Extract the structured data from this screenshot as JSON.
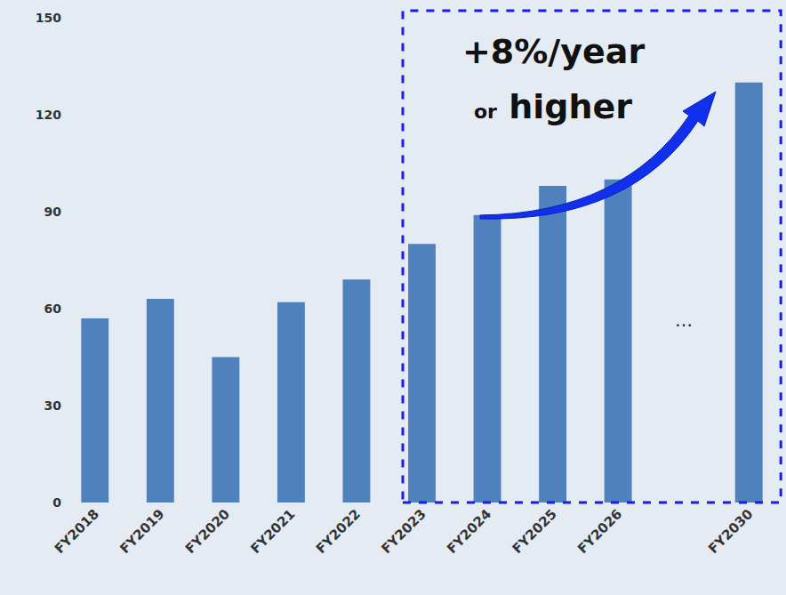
{
  "chart_data": {
    "type": "bar",
    "categories": [
      "FY2018",
      "FY2019",
      "FY2020",
      "FY2021",
      "FY2022",
      "FY2023",
      "FY2024",
      "FY2025",
      "FY2026",
      null,
      "FY2030"
    ],
    "values": [
      57,
      63,
      45,
      62,
      69,
      80,
      89,
      98,
      100,
      null,
      130
    ],
    "color": "#4f81bd",
    "ylim": [
      0,
      150
    ],
    "yticks": [
      0,
      30,
      60,
      90,
      120,
      150
    ],
    "grid": false,
    "annotations": [
      "+8%/year",
      "or higher",
      "…"
    ]
  }
}
